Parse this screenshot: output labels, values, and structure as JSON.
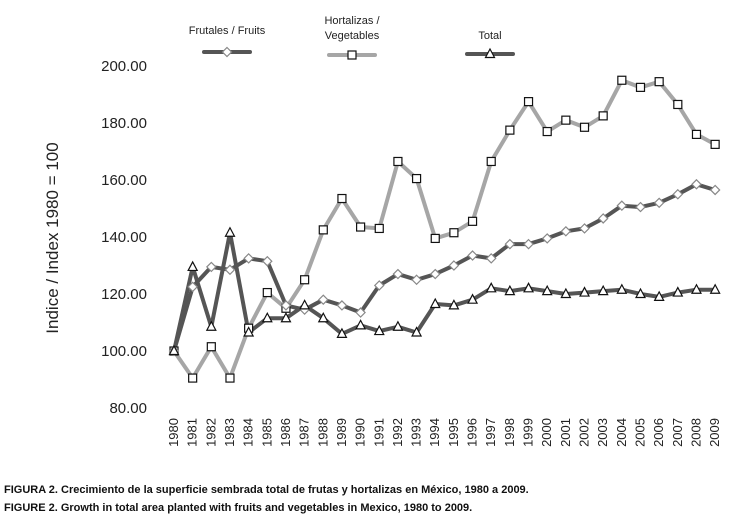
{
  "chart_data": {
    "type": "line",
    "ylabel": "Indice / Index 1980 = 100",
    "ylim": [
      80,
      200
    ],
    "yticks": [
      "80.00",
      "100.00",
      "120.00",
      "140.00",
      "160.00",
      "180.00",
      "200.00"
    ],
    "grid": false,
    "legend_position": "top",
    "x": [
      "1980",
      "1981",
      "1982",
      "1983",
      "1984",
      "1985",
      "1986",
      "1987",
      "1988",
      "1989",
      "1990",
      "1991",
      "1992",
      "1993",
      "1994",
      "1995",
      "1996",
      "1997",
      "1998",
      "1999",
      "2000",
      "2001",
      "2002",
      "2003",
      "2004",
      "2005",
      "2006",
      "2007",
      "2008",
      "2009"
    ],
    "series": [
      {
        "name": "Frutales / Fruits",
        "legend_lines": [
          "Frutales / Fruits"
        ],
        "marker": "diamond",
        "line_color": "#555555",
        "values": [
          100.0,
          122.5,
          129.5,
          128.5,
          132.5,
          131.5,
          116.0,
          114.5,
          118.0,
          116.0,
          113.5,
          123.0,
          127.0,
          125.0,
          127.0,
          130.0,
          133.5,
          132.5,
          137.5,
          137.5,
          139.5,
          142.0,
          143.0,
          146.5,
          151.0,
          150.5,
          152.0,
          155.0,
          158.5,
          156.5
        ]
      },
      {
        "name": "Hortalizas / Vegetables",
        "legend_lines": [
          "Hortalizas /",
          "Vegetables"
        ],
        "marker": "square",
        "line_color": "#a6a6a6",
        "values": [
          100.0,
          90.5,
          101.5,
          90.5,
          108.0,
          120.5,
          115.0,
          125.0,
          142.5,
          153.5,
          143.5,
          143.0,
          166.5,
          160.5,
          139.5,
          141.5,
          145.5,
          166.5,
          177.5,
          187.5,
          177.0,
          181.0,
          178.5,
          182.5,
          195.0,
          192.5,
          194.5,
          186.5,
          176.0,
          172.5
        ]
      },
      {
        "name": "Total",
        "legend_lines": [
          "Total"
        ],
        "marker": "triangle",
        "line_color": "#555555",
        "values": [
          100.0,
          129.5,
          108.5,
          141.5,
          106.5,
          111.5,
          111.5,
          116.0,
          111.5,
          106.0,
          109.0,
          107.0,
          108.5,
          106.5,
          116.5,
          116.0,
          118.0,
          122.0,
          121.0,
          122.0,
          121.0,
          120.0,
          120.5,
          121.0,
          121.5,
          120.0,
          119.0,
          120.5,
          121.5,
          121.5
        ]
      }
    ]
  },
  "caption": {
    "line1": "FIGURA 2. Crecimiento de la superficie sembrada total de frutas y hortalizas en México, 1980 a 2009.",
    "line2": "FIGURE 2. Growth in total area planted with fruits and vegetables in Mexico, 1980 to 2009."
  }
}
